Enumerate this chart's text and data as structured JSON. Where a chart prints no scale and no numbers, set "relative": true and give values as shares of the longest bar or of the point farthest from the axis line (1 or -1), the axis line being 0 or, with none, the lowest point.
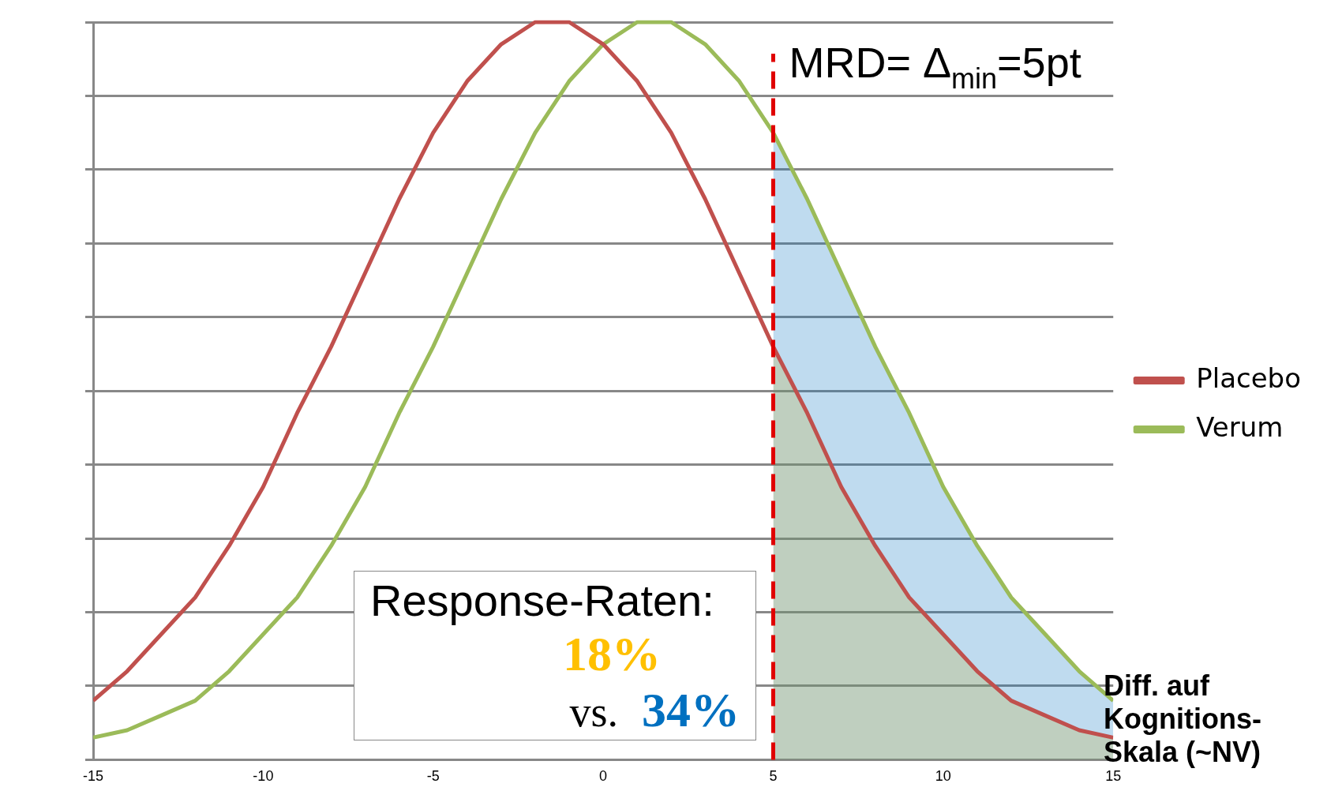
{
  "chart_data": {
    "type": "line",
    "relative": true,
    "xlabel": "Diff. auf Kognitions-Skala (~NV)",
    "x": [
      -15,
      -14,
      -13,
      -12,
      -11,
      -10,
      -9,
      -8,
      -7,
      -6,
      -5,
      -4,
      -3,
      -2,
      -1,
      0,
      1,
      2,
      3,
      4,
      5,
      6,
      7,
      8,
      9,
      10,
      11,
      12,
      13,
      14,
      15
    ],
    "xlim": [
      -15,
      15
    ],
    "xticks": [
      -15,
      -10,
      -5,
      0,
      5,
      10,
      15
    ],
    "grid": "y",
    "legend": "right",
    "marker": "none",
    "series": [
      {
        "name": "Placebo",
        "color": "#c0504d",
        "values": [
          0.08,
          0.12,
          0.17,
          0.22,
          0.29,
          0.37,
          0.47,
          0.56,
          0.66,
          0.76,
          0.85,
          0.92,
          0.97,
          1.0,
          1.0,
          0.97,
          0.92,
          0.85,
          0.76,
          0.66,
          0.56,
          0.47,
          0.37,
          0.29,
          0.22,
          0.17,
          0.12,
          0.08,
          0.06,
          0.04,
          0.03
        ]
      },
      {
        "name": "Verum",
        "color": "#9bbb59",
        "values": [
          0.03,
          0.04,
          0.06,
          0.08,
          0.12,
          0.17,
          0.22,
          0.29,
          0.37,
          0.47,
          0.56,
          0.66,
          0.76,
          0.85,
          0.92,
          0.97,
          1.0,
          1.0,
          0.97,
          0.92,
          0.85,
          0.76,
          0.66,
          0.56,
          0.47,
          0.37,
          0.29,
          0.22,
          0.17,
          0.12,
          0.08
        ]
      },
      {
        "type": "area",
        "color": "#0070c0",
        "x": [
          5,
          6,
          7,
          8,
          9,
          10,
          11,
          12,
          13,
          14,
          15
        ],
        "values": [
          0.85,
          0.76,
          0.66,
          0.56,
          0.47,
          0.37,
          0.29,
          0.22,
          0.17,
          0.12,
          0.08
        ]
      },
      {
        "type": "area",
        "color": "#ffc000",
        "x": [
          5,
          6,
          7,
          8,
          9,
          10,
          11,
          12,
          13,
          14,
          15
        ],
        "values": [
          0.56,
          0.47,
          0.37,
          0.29,
          0.22,
          0.17,
          0.12,
          0.08,
          0.06,
          0.04,
          0.03
        ]
      }
    ],
    "ref_lines": [
      {
        "axis": "x",
        "value": 5,
        "label": "MRD= Δ$_{min}$=5pt",
        "color": "#e00000",
        "line_style": "dashed"
      }
    ],
    "annotations": [
      "Response-Raten:",
      "18%",
      "vs.",
      "34%"
    ]
  }
}
